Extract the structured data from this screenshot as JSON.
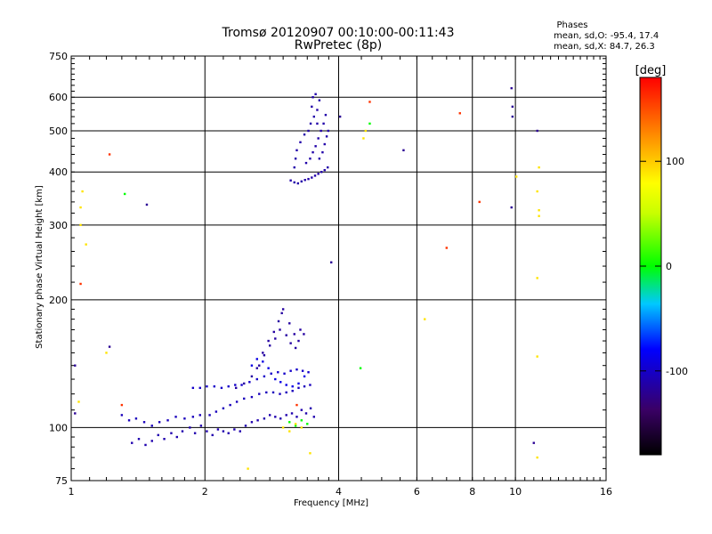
{
  "chart_data": {
    "type": "scatter",
    "title": "Tromsø 20120907 00:10:00-00:11:43",
    "subtitle": "RwPretec (8p)",
    "xlabel": "Frequency [MHz]",
    "ylabel": "Stationary phase Virtual Height [km]",
    "x_scale": "log",
    "y_scale": "log",
    "xlim": [
      1,
      16
    ],
    "ylim": [
      75,
      750
    ],
    "x_ticks": [
      1,
      2,
      4,
      6,
      8,
      10,
      16
    ],
    "x_tick_labels": [
      "1",
      "2",
      "4",
      "6",
      "8",
      "10",
      "16"
    ],
    "y_ticks": [
      75,
      100,
      200,
      300,
      400,
      500,
      600,
      750
    ],
    "y_tick_labels": [
      "75",
      "100",
      "200",
      "300",
      "400",
      "500",
      "600",
      "750"
    ],
    "grid": true,
    "phase_box": {
      "heading": "Phases",
      "line_o": "mean, sd,O: -95.4, 17.4",
      "line_x": "mean, sd,X:  84.7, 26.3"
    },
    "colorbar": {
      "label": "[deg]",
      "range": [
        -180,
        180
      ],
      "ticks": [
        100,
        0,
        -100
      ],
      "tick_labels": [
        "100",
        "0",
        "-100"
      ]
    },
    "point_groups": [
      {
        "phase": -110,
        "points": [
          [
            1.37,
            92
          ],
          [
            1.42,
            94
          ],
          [
            1.47,
            91
          ],
          [
            1.52,
            93
          ],
          [
            1.57,
            96
          ],
          [
            1.62,
            94
          ],
          [
            1.68,
            97
          ],
          [
            1.73,
            95
          ],
          [
            1.78,
            98
          ],
          [
            1.85,
            100
          ],
          [
            1.9,
            97
          ],
          [
            1.96,
            101
          ],
          [
            2.02,
            98
          ],
          [
            2.08,
            96
          ],
          [
            2.14,
            99
          ],
          [
            2.2,
            98
          ],
          [
            2.26,
            97
          ],
          [
            2.33,
            99
          ],
          [
            2.4,
            98
          ],
          [
            2.47,
            101
          ],
          [
            2.55,
            103
          ],
          [
            2.63,
            104
          ],
          [
            2.72,
            105
          ],
          [
            2.8,
            107
          ],
          [
            2.88,
            106
          ],
          [
            2.96,
            105
          ],
          [
            3.05,
            107
          ],
          [
            3.14,
            108
          ],
          [
            3.22,
            106
          ],
          [
            3.3,
            110
          ],
          [
            3.38,
            108
          ],
          [
            3.46,
            111
          ],
          [
            3.52,
            106
          ]
        ]
      },
      {
        "phase": -105,
        "points": [
          [
            1.3,
            107
          ],
          [
            1.35,
            104
          ],
          [
            1.4,
            105
          ],
          [
            1.46,
            103
          ],
          [
            1.52,
            101
          ],
          [
            1.58,
            103
          ],
          [
            1.65,
            104
          ],
          [
            1.72,
            106
          ],
          [
            1.8,
            105
          ],
          [
            1.88,
            106
          ],
          [
            1.95,
            107
          ],
          [
            2.05,
            107
          ],
          [
            2.12,
            109
          ],
          [
            2.2,
            111
          ],
          [
            2.28,
            113
          ],
          [
            2.36,
            115
          ],
          [
            2.45,
            117
          ],
          [
            2.55,
            118
          ],
          [
            2.65,
            120
          ],
          [
            2.75,
            121
          ],
          [
            2.85,
            121
          ],
          [
            2.95,
            120
          ],
          [
            3.05,
            121
          ],
          [
            3.15,
            122
          ],
          [
            3.25,
            124
          ],
          [
            3.35,
            125
          ],
          [
            3.45,
            126
          ]
        ]
      },
      {
        "phase": -100,
        "points": [
          [
            1.88,
            124
          ],
          [
            1.95,
            124
          ],
          [
            2.02,
            125
          ],
          [
            2.1,
            125
          ],
          [
            2.18,
            124
          ],
          [
            2.26,
            125
          ],
          [
            2.34,
            126
          ],
          [
            2.42,
            126
          ],
          [
            2.52,
            128
          ],
          [
            2.62,
            130
          ],
          [
            2.72,
            132
          ],
          [
            2.82,
            134
          ],
          [
            2.92,
            135
          ],
          [
            3.02,
            134
          ],
          [
            3.12,
            136
          ],
          [
            3.22,
            137
          ],
          [
            3.32,
            136
          ],
          [
            3.42,
            135
          ]
        ]
      },
      {
        "phase": -115,
        "points": [
          [
            2.35,
            124
          ],
          [
            2.45,
            127
          ],
          [
            2.55,
            132
          ],
          [
            2.65,
            140
          ],
          [
            2.72,
            148
          ],
          [
            2.8,
            156
          ],
          [
            2.88,
            162
          ],
          [
            2.95,
            170
          ],
          [
            3.05,
            165
          ],
          [
            3.12,
            158
          ],
          [
            3.2,
            154
          ],
          [
            2.62,
            138
          ],
          [
            2.7,
            150
          ],
          [
            2.78,
            160
          ],
          [
            2.86,
            168
          ],
          [
            2.93,
            178
          ],
          [
            2.98,
            186
          ],
          [
            3.0,
            190
          ],
          [
            3.1,
            176
          ],
          [
            3.18,
            166
          ],
          [
            3.25,
            160
          ],
          [
            3.28,
            170
          ],
          [
            3.34,
            166
          ]
        ]
      },
      {
        "phase": -112,
        "points": [
          [
            3.12,
            382
          ],
          [
            3.18,
            378
          ],
          [
            3.24,
            376
          ],
          [
            3.3,
            380
          ],
          [
            3.36,
            383
          ],
          [
            3.42,
            385
          ],
          [
            3.48,
            388
          ],
          [
            3.54,
            392
          ],
          [
            3.6,
            396
          ],
          [
            3.66,
            400
          ],
          [
            3.72,
            404
          ],
          [
            3.78,
            410
          ],
          [
            3.38,
            420
          ],
          [
            3.45,
            430
          ],
          [
            3.5,
            445
          ],
          [
            3.55,
            460
          ],
          [
            3.6,
            480
          ],
          [
            3.65,
            500
          ],
          [
            3.7,
            520
          ],
          [
            3.74,
            545
          ],
          [
            3.58,
            560
          ],
          [
            3.62,
            590
          ],
          [
            3.55,
            610
          ],
          [
            3.5,
            600
          ],
          [
            3.48,
            570
          ],
          [
            3.52,
            540
          ],
          [
            3.46,
            520
          ],
          [
            3.42,
            500
          ],
          [
            3.35,
            490
          ],
          [
            3.28,
            470
          ],
          [
            3.22,
            450
          ],
          [
            3.2,
            430
          ],
          [
            3.18,
            410
          ],
          [
            3.62,
            430
          ],
          [
            3.68,
            445
          ],
          [
            3.72,
            465
          ],
          [
            3.76,
            485
          ],
          [
            3.79,
            500
          ],
          [
            3.58,
            520
          ]
        ]
      },
      {
        "phase": -120,
        "points": [
          [
            1.02,
            108
          ],
          [
            1.02,
            140
          ],
          [
            1.22,
            155
          ],
          [
            1.48,
            335
          ],
          [
            3.85,
            245
          ],
          [
            4.03,
            540
          ],
          [
            5.6,
            450
          ],
          [
            9.8,
            630
          ],
          [
            9.85,
            570
          ],
          [
            9.85,
            540
          ],
          [
            9.8,
            330
          ],
          [
            11.2,
            500
          ],
          [
            11.0,
            92
          ]
        ]
      },
      {
        "phase": -90,
        "points": [
          [
            2.55,
            140
          ],
          [
            2.62,
            145
          ],
          [
            2.7,
            143
          ],
          [
            2.78,
            138
          ],
          [
            2.88,
            130
          ],
          [
            2.96,
            128
          ],
          [
            3.05,
            126
          ],
          [
            3.15,
            125
          ],
          [
            3.25,
            127
          ],
          [
            3.35,
            132
          ]
        ]
      },
      {
        "phase": 0,
        "points": [
          [
            1.32,
            355
          ],
          [
            4.7,
            520
          ],
          [
            4.48,
            138
          ],
          [
            3.1,
            103
          ],
          [
            3.2,
            101
          ],
          [
            3.3,
            104
          ],
          [
            3.4,
            102
          ]
        ]
      },
      {
        "phase": 90,
        "points": [
          [
            1.05,
            300
          ],
          [
            1.06,
            360
          ],
          [
            1.05,
            330
          ],
          [
            1.08,
            270
          ],
          [
            1.2,
            150
          ],
          [
            11.3,
            410
          ],
          [
            11.2,
            360
          ],
          [
            11.3,
            325
          ],
          [
            11.3,
            315
          ],
          [
            11.2,
            225
          ],
          [
            11.2,
            147
          ],
          [
            11.2,
            85
          ],
          [
            10.05,
            390
          ],
          [
            6.25,
            180
          ],
          [
            2.5,
            80
          ],
          [
            1.04,
            115
          ],
          [
            4.55,
            480
          ],
          [
            4.6,
            500
          ],
          [
            3.0,
            100
          ],
          [
            3.1,
            98
          ],
          [
            3.2,
            102
          ],
          [
            3.3,
            100
          ],
          [
            3.45,
            87
          ]
        ]
      },
      {
        "phase": 160,
        "points": [
          [
            1.05,
            218
          ],
          [
            1.22,
            440
          ],
          [
            4.7,
            585
          ],
          [
            7.5,
            550
          ],
          [
            8.3,
            340
          ],
          [
            7.0,
            265
          ],
          [
            1.3,
            113
          ],
          [
            3.22,
            113
          ]
        ]
      }
    ]
  }
}
